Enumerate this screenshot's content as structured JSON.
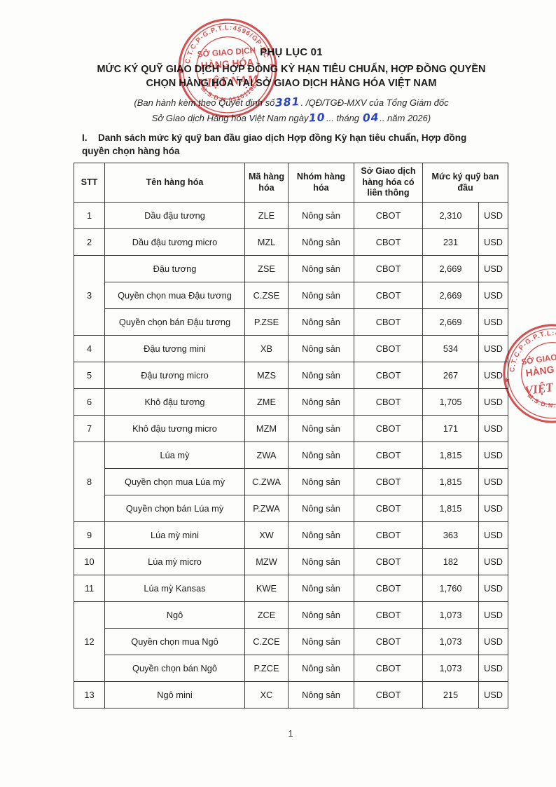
{
  "header": {
    "appendix": "PHỤ LỤC 01",
    "title_line1": "MỨC KÝ QUỸ GIAO DỊCH HỢP ĐỒNG KỲ HẠN TIÊU CHUẨN, HỢP ĐỒNG QUYỀN",
    "title_line2": "CHỌN HÀNG HÓA TẠI SỞ GIAO DỊCH HÀNG HÓA VIỆT NAM",
    "subtitle": {
      "line1_pre": "(Ban hành kèm theo Quyết định số",
      "decision_number": "381",
      "line1_post": ". /QĐ/TGĐ-MXV của Tổng Giám đốc",
      "line2_pre": "Sở Giao dịch Hàng hóa Việt Nam ngày",
      "day": "10",
      "line2_mid": "... tháng ",
      "month": "04",
      "line2_post": ".. năm 2026)"
    }
  },
  "section": {
    "prefix": "I.",
    "heading_line1": "Danh sách mức ký quỹ ban đầu giao dịch Hợp đồng Kỳ hạn tiêu chuẩn, Hợp đồng",
    "heading_line2": "quyền chọn hàng hóa"
  },
  "table": {
    "headers": {
      "stt": "STT",
      "name": "Tên hàng hóa",
      "code": "Mã hàng hóa",
      "group": "Nhóm hàng hóa",
      "exchange": "Sở Giao dịch hàng hóa có liên thông",
      "margin": "Mức ký quỹ ban đầu"
    },
    "rows": [
      {
        "stt": "1",
        "items": [
          {
            "name": "Dầu đậu tương",
            "code": "ZLE",
            "group": "Nông sản",
            "exchange": "CBOT",
            "value": "2,310",
            "currency": "USD"
          }
        ]
      },
      {
        "stt": "2",
        "items": [
          {
            "name": "Dầu đậu tương micro",
            "code": "MZL",
            "group": "Nông sản",
            "exchange": "CBOT",
            "value": "231",
            "currency": "USD"
          }
        ]
      },
      {
        "stt": "3",
        "items": [
          {
            "name": "Đậu tương",
            "code": "ZSE",
            "group": "Nông sản",
            "exchange": "CBOT",
            "value": "2,669",
            "currency": "USD"
          },
          {
            "name": "Quyền chọn mua Đậu tương",
            "code": "C.ZSE",
            "group": "Nông sản",
            "exchange": "CBOT",
            "value": "2,669",
            "currency": "USD"
          },
          {
            "name": "Quyền chọn bán Đậu tương",
            "code": "P.ZSE",
            "group": "Nông sản",
            "exchange": "CBOT",
            "value": "2,669",
            "currency": "USD"
          }
        ]
      },
      {
        "stt": "4",
        "items": [
          {
            "name": "Đậu tương mini",
            "code": "XB",
            "group": "Nông sản",
            "exchange": "CBOT",
            "value": "534",
            "currency": "USD"
          }
        ]
      },
      {
        "stt": "5",
        "items": [
          {
            "name": "Đậu tương micro",
            "code": "MZS",
            "group": "Nông sản",
            "exchange": "CBOT",
            "value": "267",
            "currency": "USD"
          }
        ]
      },
      {
        "stt": "6",
        "items": [
          {
            "name": "Khô đậu tương",
            "code": "ZME",
            "group": "Nông sản",
            "exchange": "CBOT",
            "value": "1,705",
            "currency": "USD"
          }
        ]
      },
      {
        "stt": "7",
        "items": [
          {
            "name": "Khô đậu tương micro",
            "code": "MZM",
            "group": "Nông sản",
            "exchange": "CBOT",
            "value": "171",
            "currency": "USD"
          }
        ]
      },
      {
        "stt": "8",
        "items": [
          {
            "name": "Lúa mỳ",
            "code": "ZWA",
            "group": "Nông sản",
            "exchange": "CBOT",
            "value": "1,815",
            "currency": "USD"
          },
          {
            "name": "Quyền chọn mua Lúa mỳ",
            "code": "C.ZWA",
            "group": "Nông sản",
            "exchange": "CBOT",
            "value": "1,815",
            "currency": "USD"
          },
          {
            "name": "Quyền chọn bán Lúa mỳ",
            "code": "P.ZWA",
            "group": "Nông sản",
            "exchange": "CBOT",
            "value": "1,815",
            "currency": "USD"
          }
        ]
      },
      {
        "stt": "9",
        "items": [
          {
            "name": "Lúa mỳ mini",
            "code": "XW",
            "group": "Nông sản",
            "exchange": "CBOT",
            "value": "363",
            "currency": "USD"
          }
        ]
      },
      {
        "stt": "10",
        "items": [
          {
            "name": "Lúa mỳ micro",
            "code": "MZW",
            "group": "Nông sản",
            "exchange": "CBOT",
            "value": "182",
            "currency": "USD"
          }
        ]
      },
      {
        "stt": "11",
        "items": [
          {
            "name": "Lúa mỳ Kansas",
            "code": "KWE",
            "group": "Nông sản",
            "exchange": "CBOT",
            "value": "1,760",
            "currency": "USD"
          }
        ]
      },
      {
        "stt": "12",
        "items": [
          {
            "name": "Ngô",
            "code": "ZCE",
            "group": "Nông sản",
            "exchange": "CBOT",
            "value": "1,073",
            "currency": "USD"
          },
          {
            "name": "Quyền chọn mua Ngô",
            "code": "C.ZCE",
            "group": "Nông sản",
            "exchange": "CBOT",
            "value": "1,073",
            "currency": "USD"
          },
          {
            "name": "Quyền chọn bán Ngô",
            "code": "P.ZCE",
            "group": "Nông sản",
            "exchange": "CBOT",
            "value": "1,073",
            "currency": "USD"
          }
        ]
      },
      {
        "stt": "13",
        "items": [
          {
            "name": "Ngô mini",
            "code": "XC",
            "group": "Nông sản",
            "exchange": "CBOT",
            "value": "215",
            "currency": "USD"
          }
        ]
      }
    ]
  },
  "stamp": {
    "outer_top": "C.T.C.P-G.P.T.L:4596/GP-BC",
    "outer_bottom": "M.S.D.N:03101198",
    "line1": "SỞ GIAO DỊCH",
    "line2": "HÀNG HÓA",
    "line3": "VIỆT NAM",
    "color": "#d0393b",
    "handwriting_color": "#2743c7"
  },
  "footer": {
    "page_number": "1"
  }
}
